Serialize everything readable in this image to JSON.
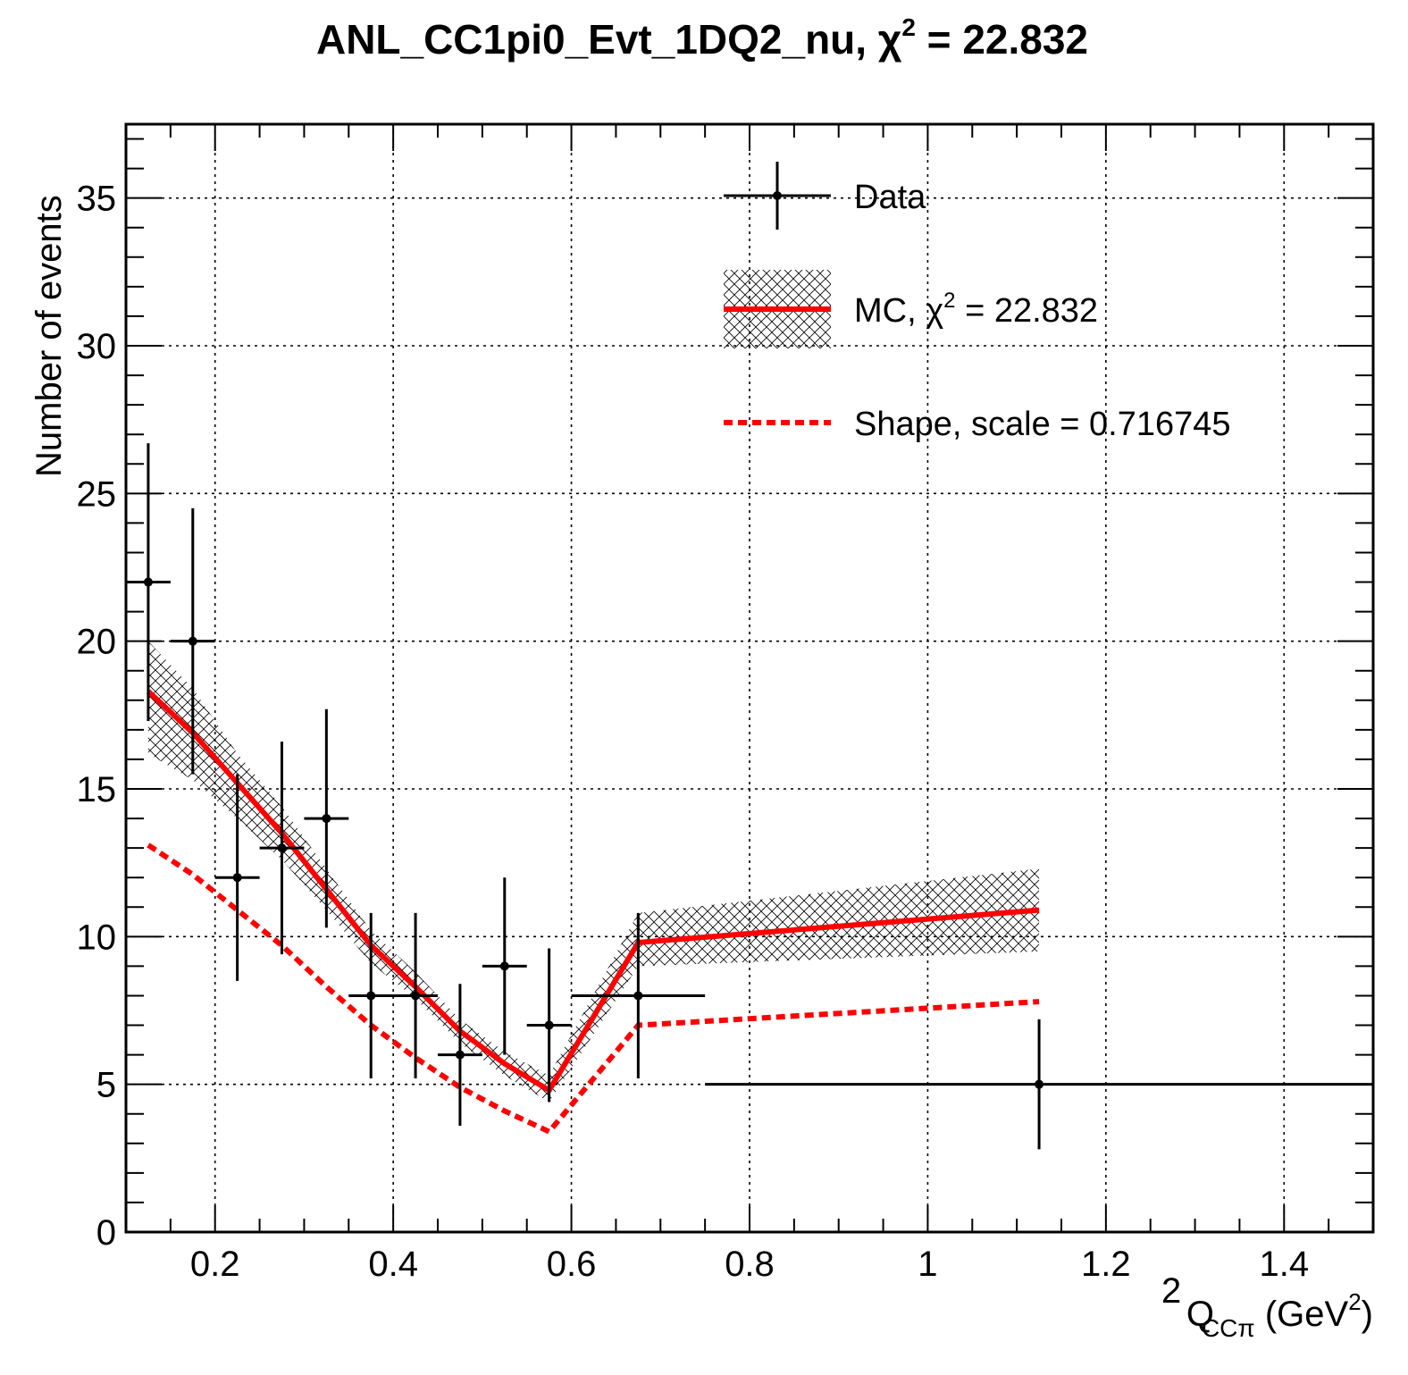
{
  "title": {
    "main": "ANL_CC1pi0_Evt_1DQ2_nu, χ",
    "sup": "2",
    "value": " = 22.832"
  },
  "axes": {
    "x": {
      "label_base": "Q",
      "label_sup": "2",
      "label_sub": "CCπ",
      "label_unit_open": " (GeV",
      "label_unit_sup": "2",
      "label_unit_close": ")"
    },
    "y": {
      "label": "Number of events"
    }
  },
  "legend": {
    "data_label": "Data",
    "mc_label_pre": "MC, χ",
    "mc_label_sup": "2",
    "mc_label_post": " = 22.832",
    "shape_label": "Shape, scale = 0.716745"
  },
  "colors": {
    "mc": "#ff0000",
    "data": "#000000",
    "band": "#000000"
  },
  "chart_data": {
    "type": "line",
    "xlim": [
      0.1,
      1.5
    ],
    "ylim": [
      0,
      37.5
    ],
    "grid": true,
    "log_scale": false,
    "legend_position": "top-right",
    "x_ticks": [
      0.2,
      0.4,
      0.6,
      0.8,
      1.0,
      1.2,
      1.4
    ],
    "x_tick_labels": [
      "0.2",
      "0.4",
      "0.6",
      "0.8",
      "1",
      "1.2",
      "1.4"
    ],
    "y_ticks": [
      0,
      5,
      10,
      15,
      20,
      25,
      30,
      35
    ],
    "y_tick_labels": [
      "0",
      "5",
      "10",
      "15",
      "20",
      "25",
      "30",
      "35"
    ],
    "data_points": [
      {
        "x": 0.125,
        "xlo": 0.1,
        "xhi": 0.15,
        "y": 22,
        "ylo": 17.3,
        "yhi": 26.7
      },
      {
        "x": 0.175,
        "xlo": 0.15,
        "xhi": 0.2,
        "y": 20,
        "ylo": 15.5,
        "yhi": 24.5
      },
      {
        "x": 0.225,
        "xlo": 0.2,
        "xhi": 0.25,
        "y": 12,
        "ylo": 8.5,
        "yhi": 15.5
      },
      {
        "x": 0.275,
        "xlo": 0.25,
        "xhi": 0.3,
        "y": 13,
        "ylo": 9.4,
        "yhi": 16.6
      },
      {
        "x": 0.325,
        "xlo": 0.3,
        "xhi": 0.35,
        "y": 14,
        "ylo": 10.3,
        "yhi": 17.7
      },
      {
        "x": 0.375,
        "xlo": 0.35,
        "xhi": 0.4,
        "y": 8,
        "ylo": 5.2,
        "yhi": 10.8
      },
      {
        "x": 0.425,
        "xlo": 0.4,
        "xhi": 0.45,
        "y": 8,
        "ylo": 5.2,
        "yhi": 10.8
      },
      {
        "x": 0.475,
        "xlo": 0.45,
        "xhi": 0.5,
        "y": 6,
        "ylo": 3.6,
        "yhi": 8.4
      },
      {
        "x": 0.525,
        "xlo": 0.5,
        "xhi": 0.55,
        "y": 9,
        "ylo": 6.0,
        "yhi": 12.0
      },
      {
        "x": 0.575,
        "xlo": 0.55,
        "xhi": 0.6,
        "y": 7,
        "ylo": 4.4,
        "yhi": 9.6
      },
      {
        "x": 0.675,
        "xlo": 0.6,
        "xhi": 0.75,
        "y": 8,
        "ylo": 5.2,
        "yhi": 10.8
      },
      {
        "x": 1.125,
        "xlo": 0.75,
        "xhi": 1.5,
        "y": 5,
        "ylo": 2.8,
        "yhi": 7.2
      }
    ],
    "series": [
      {
        "name": "MC",
        "x": [
          0.125,
          0.175,
          0.225,
          0.275,
          0.325,
          0.375,
          0.425,
          0.475,
          0.525,
          0.575,
          0.675,
          1.125
        ],
        "y": [
          18.3,
          16.9,
          15.2,
          13.5,
          11.6,
          9.7,
          8.3,
          6.8,
          5.7,
          4.8,
          9.8,
          10.9
        ],
        "band_lo": [
          16.2,
          15.3,
          14.0,
          12.6,
          10.9,
          9.1,
          7.9,
          6.4,
          5.3,
          4.4,
          9.0,
          9.5
        ],
        "band_hi": [
          20.0,
          18.4,
          16.2,
          14.4,
          12.3,
          10.2,
          8.8,
          7.2,
          6.1,
          5.3,
          10.8,
          12.3
        ]
      },
      {
        "name": "Shape, scale = 0.716745",
        "x": [
          0.125,
          0.175,
          0.225,
          0.275,
          0.325,
          0.375,
          0.425,
          0.475,
          0.525,
          0.575,
          0.675,
          1.125
        ],
        "y": [
          13.1,
          12.1,
          10.9,
          9.7,
          8.3,
          7.0,
          5.9,
          4.9,
          4.1,
          3.4,
          7.0,
          7.8
        ]
      }
    ]
  }
}
